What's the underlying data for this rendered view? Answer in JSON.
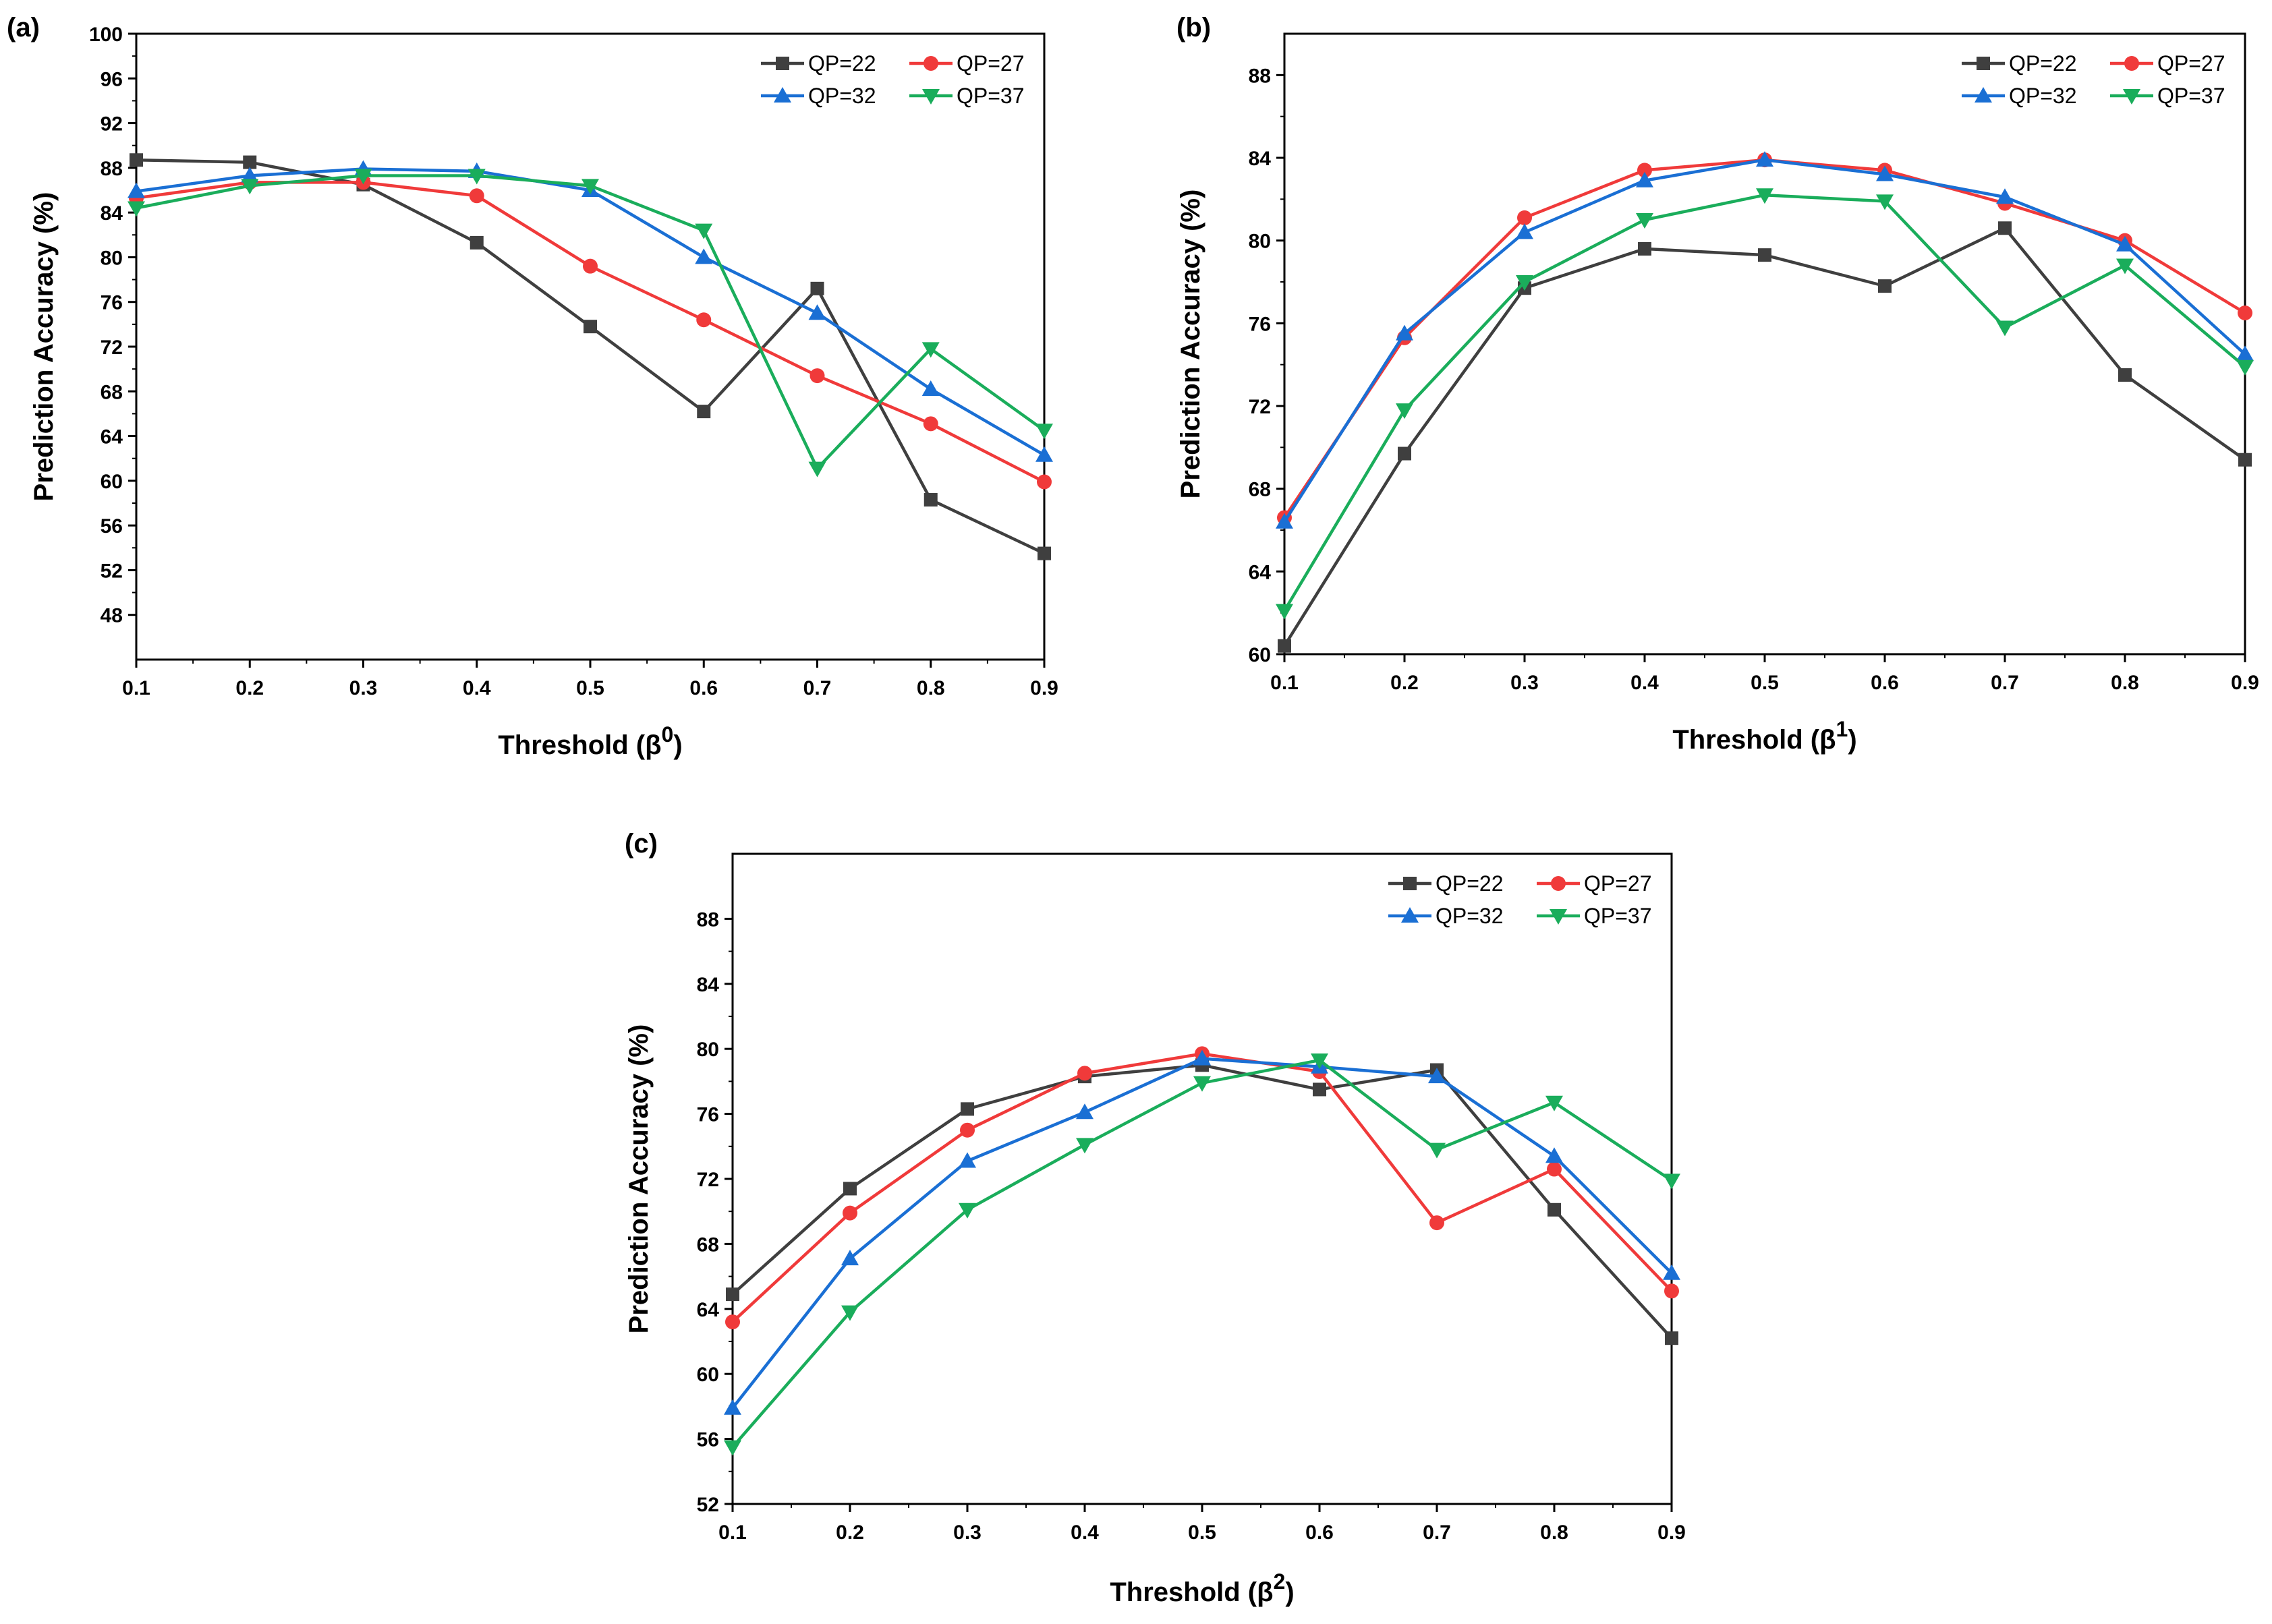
{
  "chart_data": [
    {
      "type": "line",
      "panel_label": "(a)",
      "xlabel": "Threshold (β",
      "xlabel_sup": "0",
      "xlabel_close": ")",
      "ylabel": "Prediction Accuracy (%)",
      "x": [
        0.1,
        0.2,
        0.3,
        0.4,
        0.5,
        0.6,
        0.7,
        0.8,
        0.9
      ],
      "xticks": [
        "0.1",
        "0.2",
        "0.3",
        "0.4",
        "0.5",
        "0.6",
        "0.7",
        "0.8",
        "0.9"
      ],
      "xlim": [
        0.1,
        0.9
      ],
      "ylim": [
        44,
        100
      ],
      "yticks": [
        48,
        52,
        56,
        60,
        64,
        68,
        72,
        76,
        80,
        84,
        88,
        92,
        96,
        100
      ],
      "legend_position": "top-right",
      "series": [
        {
          "name": "QP=22",
          "color": "#3f3f3f",
          "marker": "square",
          "values": [
            88.7,
            88.5,
            86.5,
            81.3,
            73.8,
            66.2,
            77.2,
            58.3,
            53.5
          ]
        },
        {
          "name": "QP=27",
          "color": "#f03a3a",
          "marker": "circle",
          "values": [
            85.3,
            86.7,
            86.7,
            85.5,
            79.2,
            74.4,
            69.4,
            65.1,
            59.9
          ]
        },
        {
          "name": "QP=32",
          "color": "#1a6fd4",
          "marker": "triangle-up",
          "values": [
            85.9,
            87.3,
            87.9,
            87.7,
            86.0,
            80.0,
            75.0,
            68.2,
            62.3
          ]
        },
        {
          "name": "QP=37",
          "color": "#1aad5b",
          "marker": "triangle-down",
          "values": [
            84.4,
            86.4,
            87.3,
            87.3,
            86.4,
            82.4,
            61.1,
            71.8,
            64.5
          ]
        }
      ]
    },
    {
      "type": "line",
      "panel_label": "(b)",
      "xlabel": "Threshold (β",
      "xlabel_sup": "1",
      "xlabel_close": ")",
      "ylabel": "Prediction Accuracy (%)",
      "x": [
        0.1,
        0.2,
        0.3,
        0.4,
        0.5,
        0.6,
        0.7,
        0.8,
        0.9
      ],
      "xticks": [
        "0.1",
        "0.2",
        "0.3",
        "0.4",
        "0.5",
        "0.6",
        "0.7",
        "0.8",
        "0.9"
      ],
      "xlim": [
        0.1,
        0.9
      ],
      "ylim": [
        60,
        90
      ],
      "yticks": [
        60,
        64,
        68,
        72,
        76,
        80,
        84,
        88
      ],
      "legend_position": "top-right",
      "series": [
        {
          "name": "QP=22",
          "color": "#3f3f3f",
          "marker": "square",
          "values": [
            60.4,
            69.7,
            77.7,
            79.6,
            79.3,
            77.8,
            80.6,
            73.5,
            69.4
          ]
        },
        {
          "name": "QP=27",
          "color": "#f03a3a",
          "marker": "circle",
          "values": [
            66.6,
            75.3,
            81.1,
            83.4,
            83.9,
            83.4,
            81.8,
            80.0,
            76.5
          ]
        },
        {
          "name": "QP=32",
          "color": "#1a6fd4",
          "marker": "triangle-up",
          "values": [
            66.4,
            75.5,
            80.4,
            82.9,
            83.9,
            83.2,
            82.1,
            79.8,
            74.5
          ]
        },
        {
          "name": "QP=37",
          "color": "#1aad5b",
          "marker": "triangle-down",
          "values": [
            62.1,
            71.8,
            78.0,
            81.0,
            82.2,
            81.9,
            75.8,
            78.8,
            73.9
          ]
        }
      ]
    },
    {
      "type": "line",
      "panel_label": "(c)",
      "xlabel": "Threshold (β",
      "xlabel_sup": "2",
      "xlabel_close": ")",
      "ylabel": "Prediction Accuracy (%)",
      "x": [
        0.1,
        0.2,
        0.3,
        0.4,
        0.5,
        0.6,
        0.7,
        0.8,
        0.9
      ],
      "xticks": [
        "0.1",
        "0.2",
        "0.3",
        "0.4",
        "0.5",
        "0.6",
        "0.7",
        "0.8",
        "0.9"
      ],
      "xlim": [
        0.1,
        0.9
      ],
      "ylim": [
        52,
        92
      ],
      "yticks": [
        52,
        56,
        60,
        64,
        68,
        72,
        76,
        80,
        84,
        88
      ],
      "legend_position": "top-right",
      "series": [
        {
          "name": "QP=22",
          "color": "#3f3f3f",
          "marker": "square",
          "values": [
            64.9,
            71.4,
            76.3,
            78.3,
            79.0,
            77.5,
            78.7,
            70.1,
            62.2
          ]
        },
        {
          "name": "QP=27",
          "color": "#f03a3a",
          "marker": "circle",
          "values": [
            63.2,
            69.9,
            75.0,
            78.5,
            79.7,
            78.6,
            69.3,
            72.6,
            65.1
          ]
        },
        {
          "name": "QP=32",
          "color": "#1a6fd4",
          "marker": "triangle-up",
          "values": [
            57.9,
            67.1,
            73.1,
            76.1,
            79.4,
            78.9,
            78.3,
            73.4,
            66.2
          ]
        },
        {
          "name": "QP=37",
          "color": "#1aad5b",
          "marker": "triangle-down",
          "values": [
            55.5,
            63.8,
            70.1,
            74.1,
            77.9,
            79.3,
            73.8,
            76.7,
            71.9
          ]
        }
      ]
    }
  ]
}
